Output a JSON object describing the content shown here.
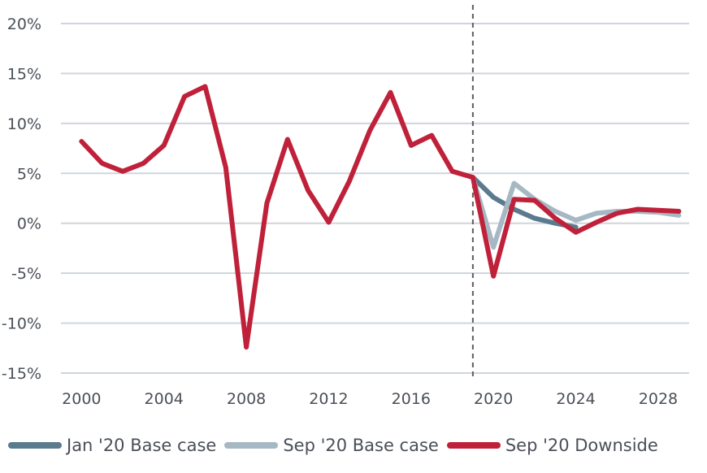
{
  "chart_data": {
    "type": "line",
    "x": [
      2000,
      2001,
      2002,
      2003,
      2004,
      2005,
      2006,
      2007,
      2008,
      2009,
      2010,
      2011,
      2012,
      2013,
      2014,
      2015,
      2016,
      2017,
      2018,
      2019,
      2020,
      2021,
      2022,
      2023,
      2024,
      2025,
      2026,
      2027,
      2028,
      2029
    ],
    "xlim": [
      1999,
      2029.5
    ],
    "ylim": [
      -15,
      20
    ],
    "x_ticks": [
      2000,
      2004,
      2008,
      2012,
      2016,
      2020,
      2024,
      2028
    ],
    "x_tick_labels": [
      "2000",
      "2004",
      "2008",
      "2012",
      "2016",
      "2020",
      "2024",
      "2028"
    ],
    "y_ticks": [
      20,
      15,
      10,
      5,
      0,
      -5,
      -10,
      -15
    ],
    "y_tick_labels": [
      "20%",
      "15%",
      "10%",
      "5%",
      "0%",
      "-5%",
      "-10%",
      "-15%"
    ],
    "grid": "horizontal",
    "reference_line_x": 2019,
    "legend_position": "bottom",
    "series": [
      {
        "name": "Jan '20 Base case",
        "color": "#5a7a8e",
        "points": [
          [
            2019,
            4.6
          ],
          [
            2020,
            2.6
          ],
          [
            2021,
            1.4
          ],
          [
            2022,
            0.5
          ],
          [
            2023,
            0.0
          ],
          [
            2024,
            -0.4
          ]
        ]
      },
      {
        "name": "Sep '20 Base case",
        "color": "#a6b8c4",
        "points": [
          [
            2019,
            4.6
          ],
          [
            2020,
            -2.4
          ],
          [
            2021,
            4.0
          ],
          [
            2022,
            2.4
          ],
          [
            2023,
            1.2
          ],
          [
            2024,
            0.3
          ],
          [
            2025,
            1.0
          ],
          [
            2026,
            1.2
          ],
          [
            2027,
            1.2
          ],
          [
            2028,
            1.1
          ],
          [
            2029,
            0.8
          ]
        ]
      },
      {
        "name": "Sep '20 Downside",
        "color": "#c0213a",
        "points": [
          [
            2000,
            8.2
          ],
          [
            2001,
            6.0
          ],
          [
            2002,
            5.2
          ],
          [
            2003,
            6.0
          ],
          [
            2004,
            7.8
          ],
          [
            2005,
            12.7
          ],
          [
            2006,
            13.7
          ],
          [
            2007,
            5.6
          ],
          [
            2008,
            -12.4
          ],
          [
            2009,
            2.0
          ],
          [
            2010,
            8.4
          ],
          [
            2011,
            3.3
          ],
          [
            2012,
            0.1
          ],
          [
            2013,
            4.2
          ],
          [
            2014,
            9.3
          ],
          [
            2015,
            13.1
          ],
          [
            2016,
            7.8
          ],
          [
            2017,
            8.8
          ],
          [
            2018,
            5.2
          ],
          [
            2019,
            4.6
          ],
          [
            2020,
            -5.3
          ],
          [
            2021,
            2.4
          ],
          [
            2022,
            2.3
          ],
          [
            2023,
            0.5
          ],
          [
            2024,
            -0.9
          ],
          [
            2025,
            0.1
          ],
          [
            2026,
            1.0
          ],
          [
            2027,
            1.4
          ],
          [
            2028,
            1.3
          ],
          [
            2029,
            1.2
          ]
        ]
      }
    ]
  }
}
